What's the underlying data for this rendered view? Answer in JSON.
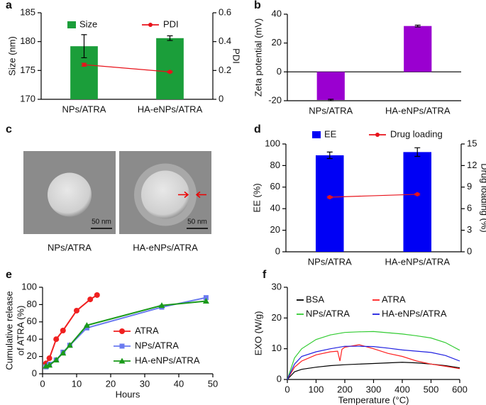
{
  "chart_data": [
    {
      "type": "bar",
      "panel": "a",
      "categories": [
        "NPs/ATRA",
        "HA-eNPs/ATRA"
      ],
      "ylabel": "Size (nm)",
      "y2label": "PDI",
      "ylim": [
        170,
        185
      ],
      "yticks": [
        170,
        175,
        180,
        185
      ],
      "y2lim": [
        0,
        0.6
      ],
      "y2ticks": [
        0,
        0.2,
        0.4,
        0.6
      ],
      "series": [
        {
          "name": "Size",
          "color": "#1b9e3a",
          "values": [
            179.2,
            180.6
          ],
          "errors": [
            2.0,
            0.4
          ]
        },
        {
          "name": "PDI",
          "color": "#e8131b",
          "axis": "y2",
          "values": [
            0.24,
            0.19
          ],
          "errors": [
            0.01,
            0.005
          ]
        }
      ]
    },
    {
      "type": "bar",
      "panel": "b",
      "categories": [
        "NPs/ATRA",
        "HA-eNPs/ATRA"
      ],
      "ylabel": "Zeta potential (mV)",
      "ylim": [
        -20,
        40
      ],
      "yticks": [
        -20,
        0,
        20,
        40
      ],
      "color": "#9a00d0",
      "values": [
        -19.5,
        31.8
      ],
      "errors": [
        0.5,
        0.6
      ]
    },
    {
      "type": "image",
      "panel": "c",
      "categories": [
        "NPs/ATRA",
        "HA-eNPs/ATRA"
      ],
      "scale_bar": "50 nm"
    },
    {
      "type": "bar",
      "panel": "d",
      "categories": [
        "NPs/ATRA",
        "HA-eNPs/ATRA"
      ],
      "ylabel": "EE (%)",
      "y2label": "Drug loading (%)",
      "ylim": [
        0,
        100
      ],
      "yticks": [
        0,
        20,
        40,
        60,
        80,
        100
      ],
      "y2lim": [
        0,
        15
      ],
      "y2ticks": [
        0,
        3,
        6,
        9,
        12,
        15
      ],
      "series": [
        {
          "name": "EE",
          "color": "#0000f5",
          "values": [
            89.5,
            92.5
          ],
          "errors": [
            3,
            4
          ]
        },
        {
          "name": "Drug loading",
          "color": "#e8131b",
          "axis": "y2",
          "values": [
            7.6,
            8.0
          ],
          "errors": [
            0.1,
            0.1
          ]
        }
      ]
    },
    {
      "type": "line",
      "panel": "e",
      "xlabel": "Hours",
      "ylabel": [
        "Cumulative release",
        "of ATRA (%)"
      ],
      "xlim": [
        0,
        50
      ],
      "xticks": [
        0,
        10,
        20,
        30,
        40,
        50
      ],
      "ylim": [
        0,
        100
      ],
      "yticks": [
        0,
        20,
        40,
        60,
        80,
        100
      ],
      "series": [
        {
          "name": "ATRA",
          "color": "#f02020",
          "marker": "circle",
          "x": [
            1,
            2,
            4,
            6,
            10,
            14,
            16
          ],
          "values": [
            12,
            18,
            40,
            50,
            73,
            86,
            91
          ]
        },
        {
          "name": "NPs/ATRA",
          "color": "#6b7bf0",
          "marker": "square",
          "x": [
            1,
            2,
            4,
            6,
            8,
            13,
            35,
            48
          ],
          "values": [
            8,
            11,
            16,
            25,
            33,
            53,
            77,
            88
          ]
        },
        {
          "name": "HA-eNPs/ATRA",
          "color": "#1a9a1a",
          "marker": "triangle",
          "x": [
            1,
            2,
            4,
            6,
            8,
            13,
            35,
            48
          ],
          "values": [
            9,
            10,
            16,
            24,
            33,
            56,
            79,
            84
          ]
        }
      ]
    },
    {
      "type": "line",
      "panel": "f",
      "xlabel": "Temperature (°C)",
      "ylabel": "EXO (W/g)",
      "xlim": [
        0,
        600
      ],
      "xticks": [
        0,
        100,
        200,
        300,
        400,
        500,
        600
      ],
      "ylim": [
        0,
        30
      ],
      "yticks": [
        0,
        10,
        20,
        30
      ],
      "series": [
        {
          "name": "BSA",
          "color": "#000000",
          "x": [
            0,
            25,
            50,
            100,
            150,
            200,
            250,
            300,
            350,
            400,
            450,
            500,
            550,
            600
          ],
          "values": [
            0,
            2.5,
            3.3,
            4.0,
            4.5,
            4.8,
            5.0,
            5.2,
            5.4,
            5.6,
            5.4,
            5.0,
            4.5,
            3.8
          ]
        },
        {
          "name": "ATRA",
          "color": "#ff2020",
          "x": [
            0,
            25,
            50,
            100,
            150,
            175,
            183,
            190,
            200,
            250,
            300,
            350,
            400,
            450,
            500,
            550,
            600
          ],
          "values": [
            0,
            4,
            6,
            8,
            9,
            9.2,
            6,
            9.8,
            10.5,
            11.3,
            10,
            8.5,
            7.5,
            6.0,
            5.0,
            4.3,
            3.5
          ]
        },
        {
          "name": "NPs/ATRA",
          "color": "#33cc33",
          "x": [
            0,
            25,
            50,
            100,
            150,
            200,
            250,
            300,
            350,
            400,
            450,
            500,
            550,
            600
          ],
          "values": [
            0,
            7,
            10,
            13,
            14.5,
            15.3,
            15.5,
            15.6,
            15.2,
            14.8,
            14.2,
            13.5,
            12,
            9.5
          ]
        },
        {
          "name": "HA-eNPs/ATRA",
          "color": "#2020e0",
          "x": [
            0,
            25,
            50,
            100,
            150,
            200,
            250,
            300,
            350,
            400,
            450,
            500,
            550,
            600
          ],
          "values": [
            0,
            5,
            7.5,
            9,
            10,
            10.8,
            10.8,
            10.7,
            10.2,
            9.6,
            9.2,
            8.8,
            7.8,
            6.0
          ]
        }
      ]
    }
  ]
}
